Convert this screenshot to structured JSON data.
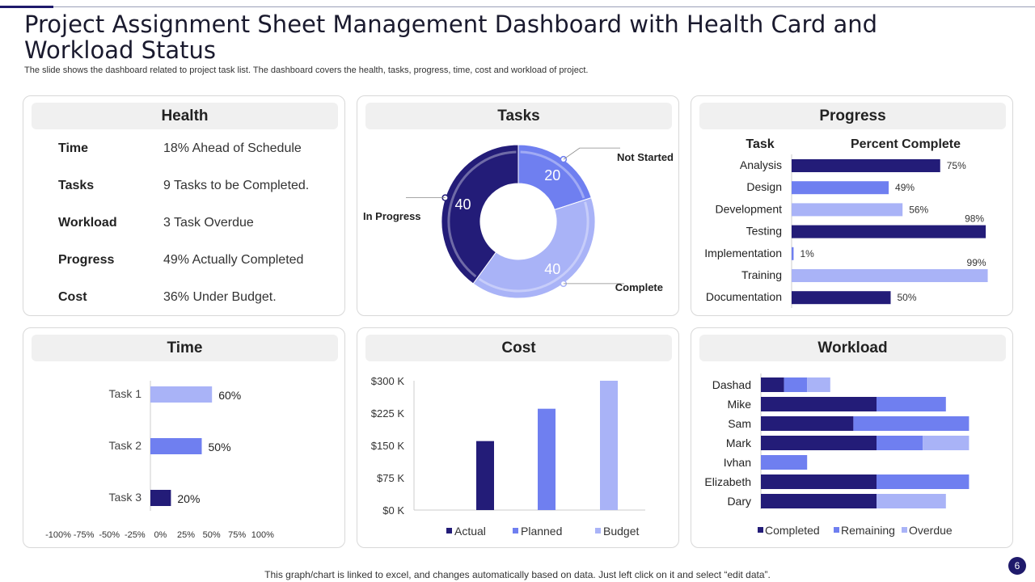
{
  "title": "Project Assignment Sheet Management Dashboard with Health Card and Workload Status",
  "subtitle": "The slide shows the dashboard related to project task list. The dashboard covers the health, tasks, progress, time, cost and workload of project.",
  "footer": "This graph/chart is linked to excel,  and changes automatically based on data. Just left click on it and select “edit data”.",
  "page_number": "6",
  "colors": {
    "dark": "#231c78",
    "medium": "#6f7ff0",
    "light": "#a9b3f7",
    "accent": "#1f1a6b"
  },
  "health": {
    "header": "Health",
    "rows": [
      {
        "label": "Time",
        "value": "18% Ahead of Schedule"
      },
      {
        "label": "Tasks",
        "value": "9 Tasks to be Completed."
      },
      {
        "label": "Workload",
        "value": "3 Task Overdue"
      },
      {
        "label": "Progress",
        "value": "49% Actually  Completed"
      },
      {
        "label": "Cost",
        "value": "36% Under Budget."
      }
    ]
  },
  "tasks_header": "Tasks",
  "progress_header": "Progress",
  "time_header": "Time",
  "cost_header": "Cost",
  "workload_header": "Workload",
  "chart_data": [
    {
      "id": "tasks",
      "type": "pie",
      "title": "Tasks",
      "slices": [
        {
          "name": "Not Started",
          "value": 20,
          "label": "20",
          "color": "#6f7ff0"
        },
        {
          "name": "Complete",
          "value": 40,
          "label": "40",
          "color": "#a9b3f7"
        },
        {
          "name": "In Progress",
          "value": 40,
          "label": "40",
          "color": "#231c78"
        }
      ]
    },
    {
      "id": "progress",
      "type": "bar",
      "orientation": "horizontal",
      "title": "Progress",
      "column_headers": [
        "Task",
        "Percent Complete"
      ],
      "categories": [
        "Analysis",
        "Design",
        "Development",
        "Testing",
        "Implementation",
        "Training",
        "Documentation"
      ],
      "values": [
        75,
        49,
        56,
        98,
        1,
        99,
        50
      ],
      "labels": [
        "75%",
        "49%",
        "56%",
        "98%",
        "1%",
        "99%",
        "50%"
      ],
      "colors": [
        "#231c78",
        "#6f7ff0",
        "#a9b3f7",
        "#231c78",
        "#6f7ff0",
        "#a9b3f7",
        "#231c78"
      ],
      "xlim": [
        0,
        100
      ]
    },
    {
      "id": "time",
      "type": "bar",
      "orientation": "horizontal",
      "title": "Time",
      "categories": [
        "Task 1",
        "Task 2",
        "Task 3"
      ],
      "values": [
        60,
        50,
        20
      ],
      "labels": [
        "60%",
        "50%",
        "20%"
      ],
      "colors": [
        "#a9b3f7",
        "#6f7ff0",
        "#231c78"
      ],
      "xlim": [
        -100,
        100
      ],
      "xticks": [
        "-100%",
        "-75%",
        "-50%",
        "-25%",
        "0%",
        "25%",
        "50%",
        "75%",
        "100%"
      ]
    },
    {
      "id": "cost",
      "type": "bar",
      "title": "Cost",
      "categories": [
        "Actual",
        "Planned",
        "Budget"
      ],
      "values": [
        160,
        235,
        300
      ],
      "colors": [
        "#231c78",
        "#6f7ff0",
        "#a9b3f7"
      ],
      "ylim": [
        0,
        300
      ],
      "yticks": [
        "$0 K",
        "$75 K",
        "$150 K",
        "$225 K",
        "$300 K"
      ],
      "ylabel": "$ K",
      "legend": [
        "Actual",
        "Planned",
        "Budget"
      ]
    },
    {
      "id": "workload",
      "type": "bar",
      "orientation": "horizontal",
      "stacked": true,
      "title": "Workload",
      "categories": [
        "Dashad",
        "Mike",
        "Sam",
        "Mark",
        "Ivhan",
        "Elizabeth",
        "Dary"
      ],
      "series": [
        {
          "name": "Completed",
          "color": "#231c78",
          "values": [
            1,
            5,
            4,
            5,
            0,
            5,
            5
          ]
        },
        {
          "name": "Remaining",
          "color": "#6f7ff0",
          "values": [
            1,
            3,
            5,
            2,
            2,
            4,
            0
          ]
        },
        {
          "name": "Overdue",
          "color": "#a9b3f7",
          "values": [
            1,
            0,
            0,
            2,
            0,
            0,
            3
          ]
        }
      ],
      "xlim": [
        0,
        9
      ]
    }
  ]
}
